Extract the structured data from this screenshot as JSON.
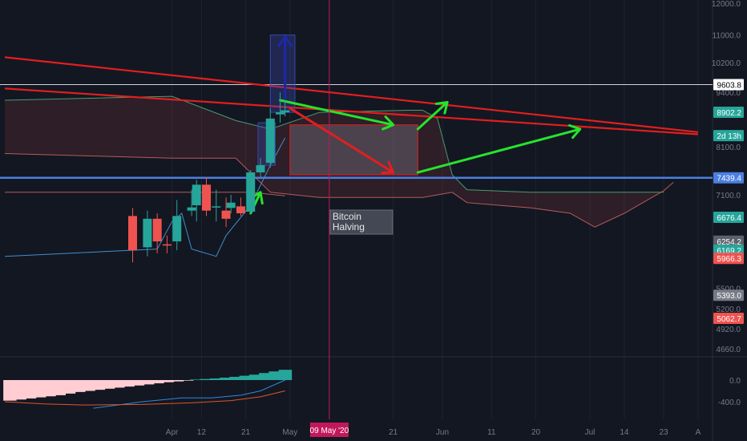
{
  "chart_data": {
    "type": "candlestick",
    "symbol": "BTC",
    "colors": {
      "background": "#131722",
      "grid": "#1f2330",
      "axis_text": "#787b86",
      "up": "#26a69a",
      "down": "#ef5350",
      "cloud_top": "#4a9a72",
      "cloud_bottom": "#b65b5b",
      "conversion_line": "#3e8ed0",
      "resistance": "#e31e1e",
      "support": "#4a7fe0",
      "arrow_up": "#1f28a8",
      "arrow_green": "#27e32c",
      "arrow_red": "#e31e1e",
      "halving_line": "#c2185b",
      "macd_line": "#2e89d6",
      "signal_line": "#e0552c",
      "hist_up": "#26a69a",
      "hist_down": "#ffcdd2"
    },
    "price_axis": {
      "scale": "log",
      "range": [
        4400,
        12000
      ],
      "ticks": [
        "12000.0",
        "11000.0",
        "10200.0",
        "9400.0",
        "8100.0",
        "7100.0",
        "5500.0",
        "5200.0",
        "4920.0",
        "4660.0"
      ]
    },
    "time_axis": {
      "range_days": [
        -28,
        106
      ],
      "ticks": [
        {
          "label": "Apr",
          "day": 6
        },
        {
          "label": "12",
          "day": 12
        },
        {
          "label": "21",
          "day": 21
        },
        {
          "label": "May",
          "day": 30
        },
        {
          "label": "21",
          "day": 51
        },
        {
          "label": "Jun",
          "day": 61
        },
        {
          "label": "11",
          "day": 71
        },
        {
          "label": "20",
          "day": 80
        },
        {
          "label": "Jul",
          "day": 91
        },
        {
          "label": "14",
          "day": 98
        },
        {
          "label": "23",
          "day": 106
        },
        {
          "label": "A",
          "day": 113
        }
      ]
    },
    "candles": [
      {
        "day": -2,
        "o": 6700,
        "h": 6850,
        "l": 5900,
        "c": 6100
      },
      {
        "day": 1,
        "o": 6150,
        "h": 6800,
        "l": 6000,
        "c": 6650
      },
      {
        "day": 3,
        "o": 6650,
        "h": 6750,
        "l": 6050,
        "c": 6250
      },
      {
        "day": 5,
        "o": 6200,
        "h": 6350,
        "l": 6050,
        "c": 6180
      },
      {
        "day": 7,
        "o": 6250,
        "h": 7000,
        "l": 6100,
        "c": 6700
      },
      {
        "day": 10,
        "o": 6800,
        "h": 7200,
        "l": 6700,
        "c": 6860
      },
      {
        "day": 11,
        "o": 6900,
        "h": 7400,
        "l": 6600,
        "c": 7300
      },
      {
        "day": 13,
        "o": 7300,
        "h": 7450,
        "l": 6700,
        "c": 6800
      },
      {
        "day": 15,
        "o": 6860,
        "h": 7200,
        "l": 6600,
        "c": 6880
      },
      {
        "day": 17,
        "o": 6800,
        "h": 7050,
        "l": 6500,
        "c": 6650
      },
      {
        "day": 18,
        "o": 6850,
        "h": 7100,
        "l": 6750,
        "c": 6950
      },
      {
        "day": 20,
        "o": 6880,
        "h": 7050,
        "l": 6700,
        "c": 6750
      },
      {
        "day": 22,
        "o": 6780,
        "h": 7600,
        "l": 6750,
        "c": 7550
      },
      {
        "day": 24,
        "o": 7550,
        "h": 7850,
        "l": 7450,
        "c": 7700
      },
      {
        "day": 26,
        "o": 7750,
        "h": 9000,
        "l": 7650,
        "c": 8750
      },
      {
        "day": 28,
        "o": 8850,
        "h": 9400,
        "l": 8650,
        "c": 8900
      },
      {
        "day": 29,
        "o": 8900,
        "h": 9200,
        "l": 8800,
        "c": 8950
      }
    ],
    "ichimoku_cloud": {
      "top": [
        [
          -28,
          9200
        ],
        [
          6,
          9300
        ],
        [
          19,
          8700
        ],
        [
          26,
          8500
        ],
        [
          36,
          8900
        ],
        [
          54,
          8950
        ],
        [
          57,
          8950
        ],
        [
          60,
          8750
        ],
        [
          63,
          7500
        ],
        [
          66,
          7200
        ],
        [
          79,
          7150
        ],
        [
          92,
          7150
        ],
        [
          106,
          7150
        ]
      ],
      "bottom": [
        [
          -28,
          7950
        ],
        [
          6,
          7850
        ],
        [
          19,
          7850
        ],
        [
          26,
          7150
        ],
        [
          36,
          7050
        ],
        [
          54,
          7050
        ],
        [
          57,
          7050
        ],
        [
          60,
          7100
        ],
        [
          63,
          7150
        ],
        [
          66,
          6950
        ],
        [
          79,
          6850
        ],
        [
          87,
          6750
        ],
        [
          92,
          6500
        ],
        [
          98,
          6750
        ],
        [
          106,
          7180
        ],
        [
          108,
          7350
        ]
      ]
    },
    "conversion_line": [
      [
        -28,
        6000
      ],
      [
        3,
        6120
      ],
      [
        6,
        6600
      ],
      [
        8,
        6750
      ],
      [
        10,
        6120
      ],
      [
        15,
        6000
      ],
      [
        17,
        6350
      ],
      [
        22,
        6900
      ],
      [
        26,
        7700
      ],
      [
        29,
        8300
      ]
    ],
    "base_line": [
      [
        -28,
        7150
      ],
      [
        22,
        7150
      ],
      [
        29,
        7080
      ]
    ],
    "support_level": {
      "value": 7439.4
    },
    "resistance_level": {
      "value": 9603.8
    },
    "resistance_lines": [
      {
        "from": [
          -28,
          10350
        ],
        "to": [
          113,
          8430
        ]
      },
      {
        "from": [
          -28,
          9500
        ],
        "to": [
          113,
          8380
        ]
      }
    ],
    "projection": {
      "box": {
        "from_day": 30,
        "to_day": 56,
        "top": 8600,
        "bottom": 7500
      },
      "up_box": {
        "from_day": 26,
        "to_day": 31,
        "top": 11000,
        "bottom": 8900
      },
      "up_arrow": {
        "from": [
          29,
          9250
        ],
        "to": [
          29,
          10950
        ]
      },
      "green_arrows": [
        {
          "from": [
            28,
            9200
          ],
          "to": [
            51,
            8600
          ]
        },
        {
          "from": [
            56,
            8500
          ],
          "to": [
            62,
            9150
          ]
        },
        {
          "from": [
            56,
            7550
          ],
          "to": [
            89,
            8500
          ]
        },
        {
          "from": [
            22,
            6750
          ],
          "to": [
            24,
            7150
          ]
        }
      ],
      "red_arrow": {
        "from": [
          30,
          9000
        ],
        "to": [
          51,
          7550
        ]
      }
    },
    "halving": {
      "day": 38,
      "label_line1": "Bitcoin",
      "label_line2": "Halving",
      "date_label": "09 May '20"
    },
    "price_badges": [
      {
        "label": "9603.8",
        "price": 9603.8,
        "bg": "#ffffff",
        "fg": "#000000"
      },
      {
        "label": "8902.2",
        "price": 8902.2,
        "bg": "#26a69a",
        "fg": "#ffffff"
      },
      {
        "label": "2d 13h",
        "price": 8350,
        "bg": "#26a69a",
        "fg": "#ffffff"
      },
      {
        "label": "7439.4",
        "price": 7439.4,
        "bg": "#4a7fe0",
        "fg": "#ffffff"
      },
      {
        "label": "6676.4",
        "price": 6676.4,
        "bg": "#26a69a",
        "fg": "#ffffff"
      },
      {
        "label": "6254.2",
        "price": 6254.2,
        "bg": "#5d606b",
        "fg": "#ffffff"
      },
      {
        "label": "6169.2",
        "price": 6100,
        "bg": "#26a69a",
        "fg": "#ffffff"
      },
      {
        "label": "5966.3",
        "price": 5966.3,
        "bg": "#ef5350",
        "fg": "#ffffff"
      },
      {
        "label": "5393.0",
        "price": 5393,
        "bg": "#787b86",
        "fg": "#ffffff"
      },
      {
        "label": "5062.7",
        "price": 5062.7,
        "bg": "#ef5350",
        "fg": "#ffffff"
      }
    ],
    "macd": {
      "ticks": [
        {
          "label": "0.0",
          "value": 0
        },
        {
          "label": "-400.0",
          "value": -400
        }
      ],
      "range": [
        -650,
        250
      ],
      "histogram": [
        {
          "day": -27,
          "v": -380
        },
        {
          "day": -25,
          "v": -360
        },
        {
          "day": -23,
          "v": -340
        },
        {
          "day": -21,
          "v": -320
        },
        {
          "day": -19,
          "v": -300
        },
        {
          "day": -17,
          "v": -280
        },
        {
          "day": -15,
          "v": -250
        },
        {
          "day": -13,
          "v": -220
        },
        {
          "day": -11,
          "v": -200
        },
        {
          "day": -9,
          "v": -180
        },
        {
          "day": -7,
          "v": -160
        },
        {
          "day": -5,
          "v": -140
        },
        {
          "day": -3,
          "v": -120
        },
        {
          "day": -1,
          "v": -100
        },
        {
          "day": 1,
          "v": -80
        },
        {
          "day": 3,
          "v": -60
        },
        {
          "day": 5,
          "v": -40
        },
        {
          "day": 7,
          "v": -25
        },
        {
          "day": 9,
          "v": -10
        },
        {
          "day": 11,
          "v": 10
        },
        {
          "day": 13,
          "v": 20
        },
        {
          "day": 15,
          "v": 30
        },
        {
          "day": 17,
          "v": 45
        },
        {
          "day": 19,
          "v": 60
        },
        {
          "day": 21,
          "v": 80
        },
        {
          "day": 23,
          "v": 100
        },
        {
          "day": 25,
          "v": 130
        },
        {
          "day": 27,
          "v": 160
        },
        {
          "day": 29,
          "v": 190
        }
      ],
      "macd_line": [
        [
          -10,
          -520
        ],
        [
          0,
          -400
        ],
        [
          8,
          -330
        ],
        [
          14,
          -330
        ],
        [
          20,
          -280
        ],
        [
          24,
          -200
        ],
        [
          29,
          0
        ]
      ],
      "signal_line": [
        [
          -28,
          -400
        ],
        [
          -20,
          -440
        ],
        [
          -12,
          -460
        ],
        [
          0,
          -450
        ],
        [
          10,
          -420
        ],
        [
          18,
          -380
        ],
        [
          24,
          -310
        ],
        [
          29,
          -200
        ]
      ]
    }
  }
}
